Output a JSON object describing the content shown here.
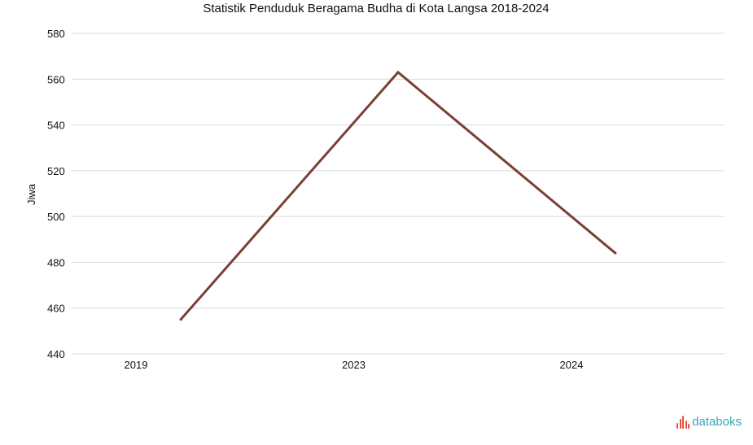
{
  "chart_data": {
    "type": "line",
    "title": "Statistik Penduduk Beragama Budha di Kota Langsa 2018-2024",
    "xlabel": "",
    "ylabel": "Jiwa",
    "categories": [
      "2019",
      "2023",
      "2024"
    ],
    "series": [
      {
        "values": [
          455,
          563,
          484
        ],
        "color": "#7b3f36"
      }
    ],
    "ylim": [
      440,
      580
    ],
    "yticks": [
      440,
      460,
      480,
      500,
      520,
      540,
      560,
      580
    ],
    "grid": true,
    "legend": "none"
  },
  "branding": {
    "name": "databoks",
    "color": "#3aa5b5",
    "icon_color": "#e8523f"
  }
}
